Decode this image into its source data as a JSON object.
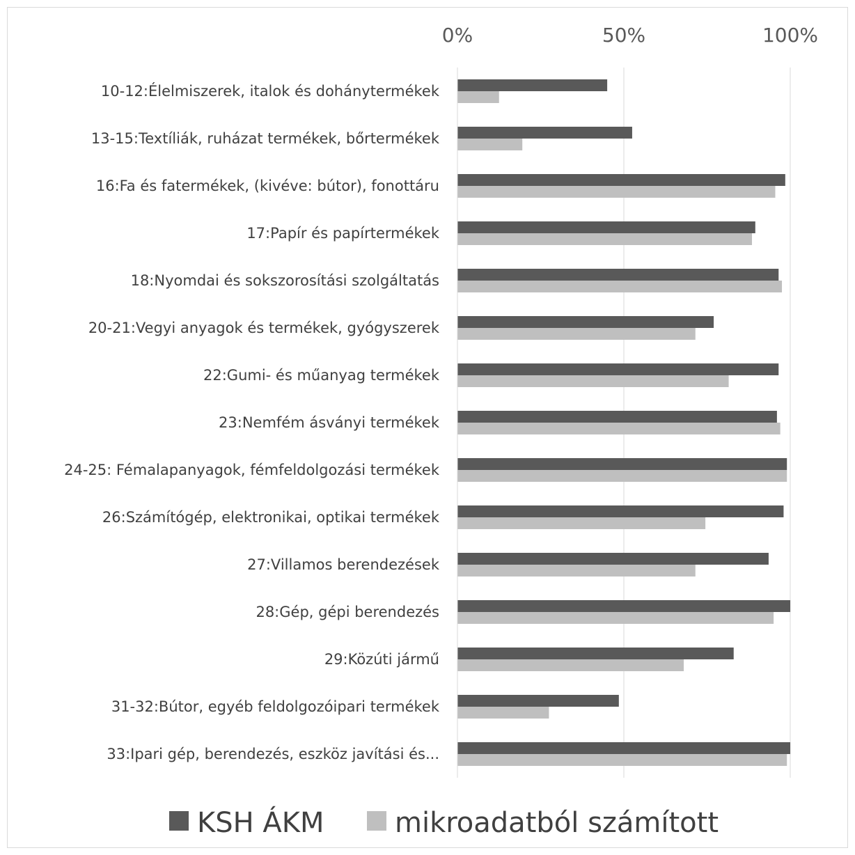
{
  "chart_data": {
    "type": "bar",
    "orientation": "horizontal",
    "categories": [
      "10-12:Élelmiszerek, italok és dohánytermékek",
      "13-15:Textíliák, ruházat termékek, bőrtermékek",
      "16:Fa és fatermékek, (kivéve: bútor), fonottáru",
      "17:Papír és papírtermékek",
      "18:Nyomdai és sokszorosítási szolgáltatás",
      "20-21:Vegyi anyagok és termékek, gyógyszerek",
      "22:Gumi- és műanyag termékek",
      "23:Nemfém ásványi termékek",
      "24-25: Fémalapanyagok, fémfeldolgozási termékek",
      "26:Számítógép, elektronikai, optikai termékek",
      "27:Villamos berendezések",
      "28:Gép, gépi berendezés",
      "29:Közúti jármű",
      "31-32:Bútor, egyéb feldolgozóipari termékek",
      "33:Ipari gép, berendezés, eszköz javítási és..."
    ],
    "series": [
      {
        "name": "KSH ÁKM",
        "color": "#595959",
        "values": [
          45,
          52.5,
          98.5,
          89.5,
          96.5,
          77,
          96.5,
          96,
          99,
          98,
          93.5,
          100,
          83,
          48.5,
          100
        ]
      },
      {
        "name": "mikroadatból számított",
        "color": "#bfbfbf",
        "values": [
          12.5,
          19.5,
          95.5,
          88.5,
          97.5,
          71.5,
          81.5,
          97,
          99,
          74.5,
          71.5,
          95,
          68,
          27.5,
          99
        ]
      }
    ],
    "xlim": [
      0,
      100
    ],
    "xticks": [
      "0%",
      "50%",
      "100%"
    ],
    "xtick_values": [
      0,
      50,
      100
    ],
    "xaxis_position": "top",
    "grid": true,
    "legend_position": "bottom"
  }
}
